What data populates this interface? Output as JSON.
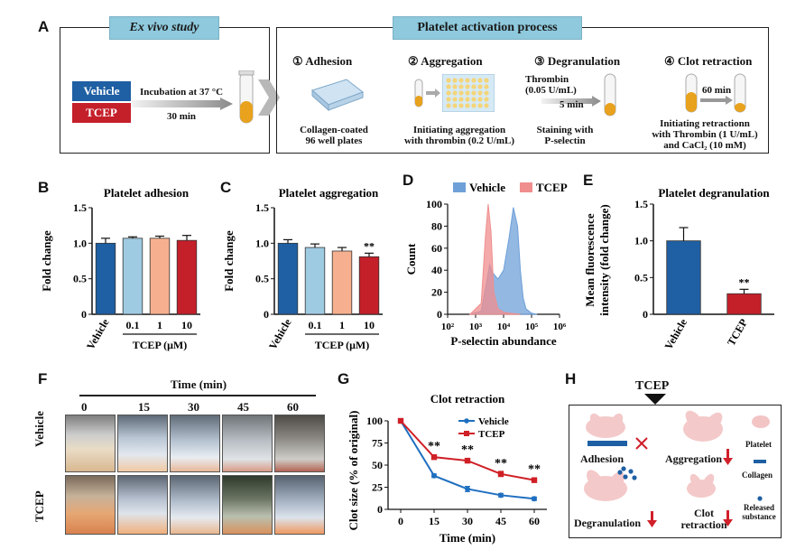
{
  "panelA": {
    "letter": "A",
    "exvivo_title": "Ex vivo study",
    "vehicle_label": "Vehicle",
    "tcep_label": "TCEP",
    "incubation_line1": "Incubation at 37 °C",
    "incubation_line2": "30 min",
    "activation_title": "Platelet activation process",
    "steps": [
      {
        "num": "①",
        "title": "Adhesion",
        "cap1": "Collagen-coated",
        "cap2": "96 well plates",
        "cap3": ""
      },
      {
        "num": "②",
        "title": "Aggregation",
        "cap1": "Initiating aggregation",
        "cap2": "with thrombin (0.2 U/mL)",
        "cap3": ""
      },
      {
        "num": "③",
        "title": "Degranulation",
        "cap1": "Staining with",
        "cap2": "P-selectin",
        "cap3": ""
      },
      {
        "num": "④",
        "title": "Clot retraction",
        "cap1": "Initiating retractionn",
        "cap2": "with Thrombin (1 U/mL)",
        "cap3": "and CaCl₂ (10 mM)"
      }
    ],
    "thrombin_line1": "Thrombin",
    "thrombin_line2": "(0.05 U/mL)",
    "deg_time": "5 min",
    "clot_time": "60 min",
    "colors": {
      "vehicle": "#1f5fa3",
      "tcep": "#c4202a",
      "header": "#8ec9dd"
    }
  },
  "panelB": {
    "letter": "B",
    "ylabel": "Fold change",
    "xgroup": "TCEP (μM)"
  },
  "panelC": {
    "letter": "C",
    "ylabel": "Fold change",
    "xgroup": "TCEP (μM)",
    "sig": "**"
  },
  "panelD": {
    "letter": "D",
    "ylabel": "Count",
    "legend_vehicle": "Vehicle",
    "legend_tcep": "TCEP"
  },
  "panelE": {
    "letter": "E",
    "ylabel_line1": "Mean fluorescence",
    "ylabel_line2": "intensity (fold change)",
    "sig": "**"
  },
  "panelF": {
    "letter": "F",
    "time_title": "Time (min)",
    "times": [
      "0",
      "15",
      "30",
      "45",
      "60"
    ],
    "rows": [
      "Vehicle",
      "TCEP"
    ]
  },
  "panelG": {
    "letter": "G",
    "ylabel": "Clot size (% of original)",
    "sig_marks": [
      "**",
      "**",
      "**",
      "**"
    ]
  },
  "panelH": {
    "letter": "H",
    "top_label": "TCEP",
    "adhesion": "Adhesion",
    "aggregation": "Aggregation",
    "degranulation": "Degranulation",
    "clot1": "Clot",
    "clot2": "retraction",
    "legend_platelet": "Platelet",
    "legend_collagen": "Collagen",
    "legend_released1": "Released",
    "legend_released2": "substance"
  },
  "chart_data": [
    {
      "panel": "B",
      "type": "bar",
      "title": "Platelet adhesion",
      "categories": [
        "Vehicle",
        "0.1",
        "1",
        "10"
      ],
      "values": [
        1.0,
        1.07,
        1.07,
        1.04
      ],
      "errors": [
        0.07,
        0.02,
        0.03,
        0.07
      ],
      "colors": [
        "#1f5fa3",
        "#9fcbe2",
        "#f7b08f",
        "#c4202a"
      ],
      "ylim": [
        0,
        1.5
      ],
      "yticks": [
        "0",
        "0.5",
        "1.0",
        "1.5"
      ],
      "ylabel": "Fold change",
      "xlabel": "TCEP (μM)"
    },
    {
      "panel": "C",
      "type": "bar",
      "title": "Platelet aggregation",
      "categories": [
        "Vehicle",
        "0.1",
        "1",
        "10"
      ],
      "values": [
        1.0,
        0.94,
        0.89,
        0.81
      ],
      "errors": [
        0.05,
        0.05,
        0.05,
        0.05
      ],
      "colors": [
        "#1f5fa3",
        "#9fcbe2",
        "#f7b08f",
        "#c4202a"
      ],
      "ylim": [
        0,
        1.5
      ],
      "yticks": [
        "0",
        "0.5",
        "1.0",
        "1.5"
      ],
      "ylabel": "Fold change",
      "xlabel": "TCEP (μM)",
      "annotation": "**"
    },
    {
      "panel": "D",
      "type": "area",
      "title": "",
      "xscale": "log",
      "xticks": [
        "10²",
        "10³",
        "10⁴",
        "10⁵",
        "10⁶"
      ],
      "yticks": [
        "0",
        "20",
        "40",
        "60",
        "80",
        "100"
      ],
      "ylim": [
        0,
        100
      ],
      "xlabel": "P-selectin abundance",
      "ylabel": "Count",
      "series": [
        {
          "name": "Vehicle",
          "color": "#6fa0d8",
          "x_log10": [
            2.8,
            3.2,
            3.4,
            3.5,
            3.6,
            3.8,
            4.0,
            4.2,
            4.35,
            4.5,
            4.6,
            4.7,
            4.8,
            5.0,
            5.2
          ],
          "y": [
            0,
            3,
            30,
            45,
            38,
            32,
            40,
            70,
            97,
            80,
            40,
            15,
            5,
            1,
            0
          ]
        },
        {
          "name": "TCEP",
          "color": "#f08e8e",
          "x_log10": [
            2.8,
            3.2,
            3.35,
            3.45,
            3.55,
            3.65,
            3.8,
            4.0,
            4.2,
            4.4,
            4.6
          ],
          "y": [
            0,
            10,
            70,
            100,
            75,
            20,
            5,
            2,
            1,
            0.5,
            0
          ]
        }
      ]
    },
    {
      "panel": "E",
      "type": "bar",
      "title": "Platelet degranulation",
      "categories": [
        "Vehicle",
        "TCEP"
      ],
      "values": [
        1.0,
        0.28
      ],
      "errors": [
        0.18,
        0.06
      ],
      "colors": [
        "#1f5fa3",
        "#c4202a"
      ],
      "ylim": [
        0,
        1.5
      ],
      "yticks": [
        "0",
        "0.5",
        "1.0",
        "1.5"
      ],
      "annotation": "**"
    },
    {
      "panel": "G",
      "type": "line",
      "title": "Clot retraction",
      "x": [
        0,
        15,
        30,
        45,
        60
      ],
      "xlabel": "Time (min)",
      "ylabel": "Clot size (% of original)",
      "ylim": [
        0,
        100
      ],
      "yticks": [
        "0",
        "25",
        "50",
        "75",
        "100"
      ],
      "series": [
        {
          "name": "Vehicle",
          "color": "#1f6fc0",
          "values": [
            100,
            38,
            23,
            16,
            12
          ],
          "errors": [
            0,
            2,
            3,
            2,
            2
          ]
        },
        {
          "name": "TCEP",
          "color": "#d01f26",
          "values": [
            100,
            59,
            55,
            40,
            33
          ],
          "errors": [
            0,
            2,
            2,
            3,
            2
          ]
        }
      ]
    }
  ]
}
